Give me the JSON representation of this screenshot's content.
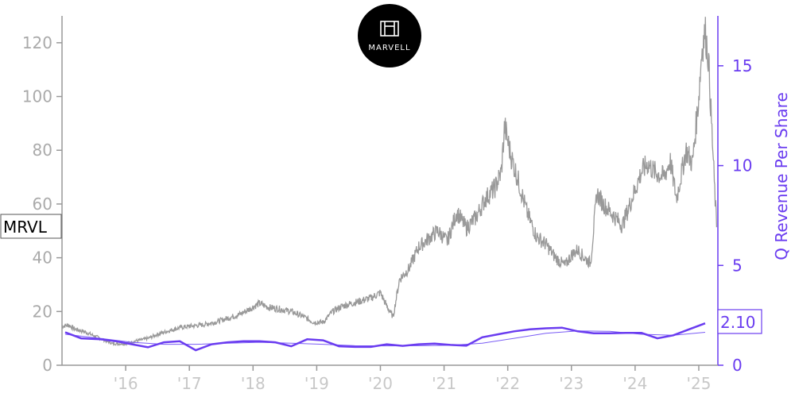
{
  "chart_data": {
    "type": "line",
    "ticker": "MRVL",
    "logo_text": "MARVELL",
    "title": "",
    "xlabel": "",
    "ylabel_left": "",
    "ylabel_right": "Q Revenue Per Share",
    "x_range": [
      2015.0,
      2025.3
    ],
    "ylim_left": [
      0,
      130
    ],
    "ylim_right": [
      0,
      17.5
    ],
    "left_ticks": [
      "0",
      "20",
      "40",
      "60",
      "80",
      "100",
      "120"
    ],
    "right_ticks": [
      "0",
      "5",
      "10",
      "15"
    ],
    "x_tick_labels": [
      "'16",
      "'17",
      "'18",
      "'19",
      "'20",
      "'21",
      "'22",
      "'23",
      "'24",
      "'25"
    ],
    "current_value_label": "2.10",
    "grid": false,
    "colors": {
      "price": "#999999",
      "revenue": "#6a3cf0",
      "revenue_thin": "#7a5cf5",
      "axis": "#999999"
    },
    "series": [
      {
        "axis": "left",
        "color": "#999999",
        "x": [
          2015.0,
          2015.1,
          2015.2,
          2015.35,
          2015.5,
          2015.65,
          2015.8,
          2016.0,
          2016.15,
          2016.35,
          2016.5,
          2016.7,
          2016.85,
          2017.0,
          2017.2,
          2017.4,
          2017.6,
          2017.8,
          2017.95,
          2018.1,
          2018.25,
          2018.4,
          2018.6,
          2018.8,
          2018.95,
          2019.1,
          2019.25,
          2019.4,
          2019.55,
          2019.7,
          2019.85,
          2020.0,
          2020.1,
          2020.2,
          2020.3,
          2020.45,
          2020.6,
          2020.75,
          2020.9,
          2021.05,
          2021.2,
          2021.35,
          2021.5,
          2021.65,
          2021.8,
          2021.9,
          2021.95,
          2022.05,
          2022.15,
          2022.3,
          2022.45,
          2022.6,
          2022.75,
          2022.9,
          2023.0,
          2023.1,
          2023.2,
          2023.3,
          2023.4,
          2023.5,
          2023.65,
          2023.8,
          2023.95,
          2024.1,
          2024.2,
          2024.3,
          2024.45,
          2024.55,
          2024.65,
          2024.8,
          2024.9,
          2025.0,
          2025.05,
          2025.1,
          2025.15,
          2025.2,
          2025.25,
          2025.28
        ],
        "values": [
          14.5,
          15,
          13.5,
          12.5,
          11,
          9.5,
          8,
          8,
          9,
          10,
          11.5,
          13,
          14,
          14.5,
          15,
          16,
          17.5,
          19,
          21,
          23,
          21.5,
          21,
          20,
          18,
          16,
          16,
          20,
          22,
          23,
          24,
          25,
          27,
          22,
          18,
          32,
          36,
          44,
          47,
          50,
          46,
          57,
          51,
          55,
          62,
          66,
          72,
          89,
          78,
          70,
          57,
          48,
          45,
          40,
          37,
          41,
          43,
          40,
          38,
          64,
          60,
          56,
          52,
          62,
          72,
          75,
          72,
          70,
          76,
          62,
          80,
          75,
          100,
          118,
          124,
          115,
          90,
          65,
          52
        ]
      },
      {
        "axis": "right",
        "name": "Q Revenue Per Share",
        "color": "#6a3cf0",
        "x": [
          2015.05,
          2015.3,
          2015.6,
          2015.85,
          2016.1,
          2016.35,
          2016.6,
          2016.85,
          2017.1,
          2017.35,
          2017.6,
          2017.85,
          2018.1,
          2018.35,
          2018.6,
          2018.85,
          2019.1,
          2019.35,
          2019.6,
          2019.85,
          2020.1,
          2020.35,
          2020.6,
          2020.85,
          2021.1,
          2021.35,
          2021.6,
          2021.85,
          2022.1,
          2022.35,
          2022.6,
          2022.85,
          2023.1,
          2023.35,
          2023.6,
          2023.85,
          2024.1,
          2024.35,
          2024.6,
          2024.85,
          2025.1
        ],
        "values": [
          1.65,
          1.35,
          1.3,
          1.2,
          1.05,
          0.9,
          1.15,
          1.2,
          0.75,
          1.05,
          1.15,
          1.2,
          1.2,
          1.15,
          0.95,
          1.3,
          1.25,
          0.95,
          0.92,
          0.92,
          1.05,
          0.97,
          1.05,
          1.08,
          1.02,
          0.98,
          1.4,
          1.55,
          1.7,
          1.8,
          1.85,
          1.88,
          1.7,
          1.6,
          1.6,
          1.62,
          1.62,
          1.35,
          1.5,
          1.8,
          2.1
        ]
      },
      {
        "axis": "right",
        "color": "#7a5cf5",
        "x": [
          2015.05,
          2015.6,
          2016.1,
          2016.6,
          2017.1,
          2017.6,
          2018.1,
          2018.6,
          2019.1,
          2019.6,
          2020.1,
          2020.6,
          2021.1,
          2021.6,
          2022.1,
          2022.6,
          2023.1,
          2023.6,
          2024.1,
          2024.6,
          2025.1
        ],
        "values": [
          1.55,
          1.35,
          1.15,
          1.05,
          1.05,
          1.1,
          1.15,
          1.1,
          1.05,
          0.98,
          0.97,
          0.98,
          1.0,
          1.1,
          1.35,
          1.6,
          1.72,
          1.7,
          1.55,
          1.5,
          1.65
        ]
      }
    ]
  }
}
